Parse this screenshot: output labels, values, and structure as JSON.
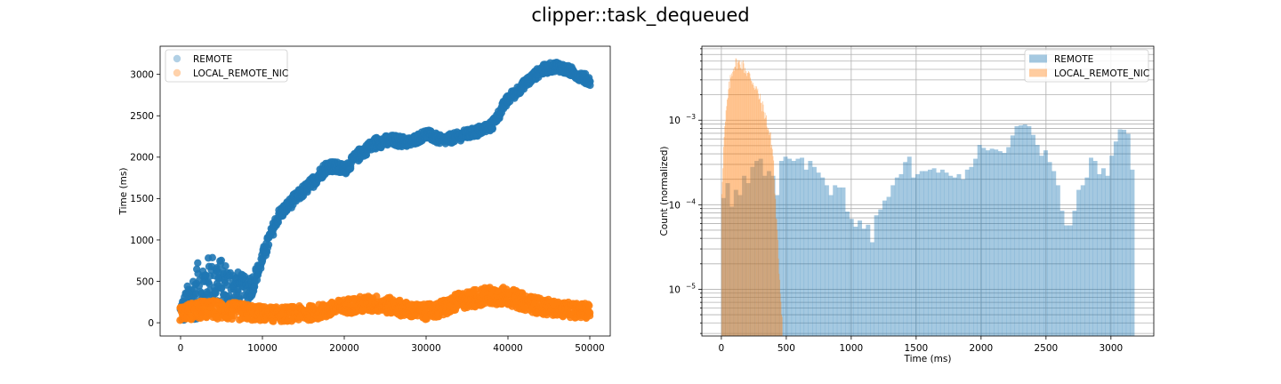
{
  "figure": {
    "title": "clipper::task_dequeued"
  },
  "chart_data": [
    {
      "type": "scatter",
      "title": "",
      "xlabel": "",
      "ylabel": "Time (ms)",
      "xlim": [
        -2500,
        52500
      ],
      "ylim": [
        -160,
        3340
      ],
      "xticks": [
        0,
        10000,
        20000,
        30000,
        40000,
        50000
      ],
      "yticks": [
        0,
        500,
        1000,
        1500,
        2000,
        2500,
        3000
      ],
      "grid": false,
      "legend": "top-left",
      "series": [
        {
          "name": "REMOTE",
          "color": "#1f77b4",
          "alpha": 0.35,
          "x": [
            0,
            2000,
            4000,
            6000,
            8000,
            9000,
            10000,
            11000,
            12000,
            14000,
            16000,
            18000,
            20000,
            22000,
            24000,
            26000,
            28000,
            30000,
            32000,
            34000,
            36000,
            38000,
            40000,
            42000,
            44000,
            46000,
            48000,
            50000
          ],
          "y": [
            120,
            380,
            520,
            420,
            350,
            500,
            780,
            1050,
            1300,
            1500,
            1680,
            1900,
            1850,
            2050,
            2180,
            2200,
            2180,
            2280,
            2200,
            2250,
            2300,
            2380,
            2700,
            2880,
            3050,
            3100,
            3020,
            2920
          ],
          "spread": [
            140,
            340,
            320,
            280,
            200,
            110,
            90,
            80,
            70,
            70,
            70,
            70,
            70,
            70,
            70,
            70,
            60,
            60,
            60,
            60,
            60,
            60,
            60,
            60,
            60,
            60,
            60,
            60
          ]
        },
        {
          "name": "LOCAL_REMOTE_NIC",
          "color": "#ff7f0e",
          "alpha": 0.35,
          "x": [
            0,
            2000,
            4000,
            6000,
            8000,
            10000,
            12000,
            14000,
            16000,
            18000,
            20000,
            22000,
            24000,
            26000,
            28000,
            30000,
            32000,
            34000,
            36000,
            38000,
            40000,
            42000,
            44000,
            46000,
            48000,
            50000
          ],
          "y": [
            120,
            150,
            160,
            140,
            130,
            110,
            100,
            110,
            120,
            150,
            200,
            220,
            230,
            200,
            150,
            130,
            170,
            260,
            300,
            330,
            320,
            250,
            200,
            170,
            150,
            140
          ],
          "spread": [
            90,
            110,
            110,
            110,
            100,
            90,
            90,
            90,
            90,
            90,
            90,
            100,
            100,
            100,
            90,
            90,
            100,
            100,
            110,
            110,
            110,
            100,
            100,
            90,
            90,
            90
          ]
        }
      ]
    },
    {
      "type": "histogram",
      "title": "",
      "xlabel": "Time (ms)",
      "ylabel": "Count (normalized)",
      "xlim": [
        -150,
        3330
      ],
      "ylim": [
        2.8e-06,
        0.0075
      ],
      "yscale": "log",
      "xticks": [
        0,
        500,
        1000,
        1500,
        2000,
        2500,
        3000
      ],
      "yticks": [
        1e-05,
        0.0001,
        0.001
      ],
      "ytick_labels": [
        {
          "base": "10",
          "exp": "−5"
        },
        {
          "base": "10",
          "exp": "−4"
        },
        {
          "base": "10",
          "exp": "−3"
        }
      ],
      "grid": true,
      "legend": "top-right",
      "series": [
        {
          "name": "REMOTE",
          "color": "#1f77b4",
          "alpha": 0.4,
          "x_start": 0,
          "bin_width": 31.8,
          "values": [
            0.00012,
            0.00018,
            9.5e-05,
            0.00015,
            0.00013,
            0.00022,
            0.00018,
            0.00028,
            0.00033,
            0.00035,
            0.00022,
            0.00025,
            0.00022,
            0.00013,
            0.00033,
            0.00037,
            0.00035,
            0.00033,
            0.00035,
            0.00036,
            0.00026,
            0.00033,
            0.00028,
            0.00024,
            0.00021,
            0.00017,
            0.00013,
            0.00017,
            0.00016,
            0.00016,
            8.3e-05,
            6.8e-05,
            5.5e-05,
            6.5e-05,
            5.2e-05,
            5.8e-05,
            3.6e-05,
            7.5e-05,
            8.8e-05,
            0.000112,
            0.000124,
            0.00017,
            0.00021,
            0.00023,
            0.00032,
            0.00037,
            0.00021,
            0.00023,
            0.00025,
            0.00025,
            0.00026,
            0.00027,
            0.00024,
            0.00026,
            0.00024,
            0.00022,
            0.00021,
            0.00023,
            0.0002,
            0.00026,
            0.00028,
            0.00035,
            0.00051,
            0.00047,
            0.00044,
            0.00046,
            0.00045,
            0.00043,
            0.00041,
            0.00048,
            0.00066,
            0.00085,
            0.00087,
            0.00089,
            0.00085,
            0.00067,
            0.00051,
            0.00038,
            0.00044,
            0.00032,
            0.00025,
            0.00017,
            8.5e-05,
            5.7e-05,
            5.7e-05,
            8.5e-05,
            0.00015,
            0.00017,
            0.00021,
            0.00036,
            0.00033,
            0.00023,
            0.00027,
            0.00022,
            0.00038,
            0.00056,
            0.00078,
            0.00077,
            0.00069,
            0.00026
          ]
        },
        {
          "name": "LOCAL_REMOTE_NIC",
          "color": "#ff7f0e",
          "alpha": 0.4,
          "x_start": 0,
          "bin_width": 4.7,
          "curve": {
            "x": [
              0,
              20,
              40,
              60,
              80,
              100,
              120,
              140,
              160,
              180,
              200,
              220,
              240,
              260,
              280,
              300,
              320,
              340,
              360,
              380,
              400,
              410,
              430,
              450,
              470
            ],
            "value": [
              0.00012,
              0.0006,
              0.0014,
              0.0025,
              0.0037,
              0.0046,
              0.0048,
              0.0047,
              0.0046,
              0.0041,
              0.0036,
              0.0033,
              0.0029,
              0.0025,
              0.0021,
              0.0017,
              0.0014,
              0.0011,
              0.0008,
              0.0006,
              0.00037,
              0.00015,
              4.5e-05,
              1.2e-05,
              4e-06
            ]
          }
        }
      ]
    }
  ]
}
